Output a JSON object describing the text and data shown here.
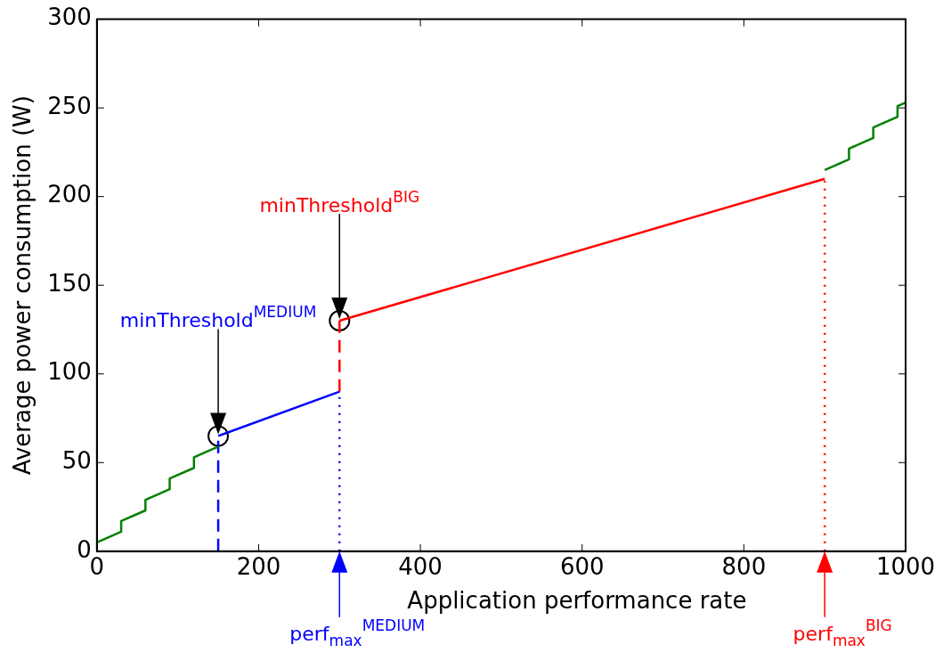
{
  "chart_data": {
    "type": "line",
    "xlabel": "Application performance rate",
    "ylabel": "Average power consumption (W)",
    "xlim": [
      0,
      1000
    ],
    "xticks": [
      0,
      200,
      400,
      600,
      800,
      1000
    ],
    "ylim": [
      0,
      300
    ],
    "yticks": [
      0,
      50,
      100,
      150,
      200,
      250,
      300
    ],
    "grid": false,
    "legend": false,
    "series": [
      {
        "color": "#008000",
        "line_style": "solid",
        "x": [
          0,
          30,
          30,
          60,
          60,
          90,
          90,
          120,
          120,
          150
        ],
        "values": [
          5,
          11,
          17,
          23,
          29,
          35,
          41,
          47,
          53,
          59
        ]
      },
      {
        "color": "#008000",
        "line_style": "solid",
        "x": [
          900,
          930,
          930,
          960,
          960,
          990,
          990,
          1000
        ],
        "values": [
          215,
          221,
          227,
          233,
          239,
          245,
          251,
          253
        ]
      },
      {
        "color": "#0000ff",
        "line_style": "solid",
        "x": [
          150,
          300
        ],
        "values": [
          65,
          90
        ]
      },
      {
        "color": "#ff0000",
        "line_style": "solid",
        "x": [
          300,
          900
        ],
        "values": [
          130,
          210
        ]
      },
      {
        "color": "#0000ff",
        "line_style": "dashed",
        "x": [
          150,
          150
        ],
        "values": [
          0,
          65
        ]
      },
      {
        "color": "#0000ff",
        "line_style": "dotted",
        "x": [
          300,
          300
        ],
        "values": [
          0,
          90
        ]
      },
      {
        "color": "#ff0000",
        "line_style": "dashed",
        "x": [
          300,
          300
        ],
        "values": [
          90,
          130
        ]
      },
      {
        "color": "#ff0000",
        "line_style": "dotted",
        "x": [
          900,
          900
        ],
        "values": [
          0,
          210
        ]
      },
      {
        "type": "scatter",
        "color": "#000000",
        "marker": "circle",
        "x": [
          150,
          300
        ],
        "values": [
          65,
          130
        ]
      }
    ],
    "annotations": [
      "minThreshold$^{MEDIUM}$",
      "minThreshold$^{BIG}$",
      "perf$_{max}$$^{MEDIUM}$",
      "perf$_{max}$$^{BIG}$"
    ]
  }
}
